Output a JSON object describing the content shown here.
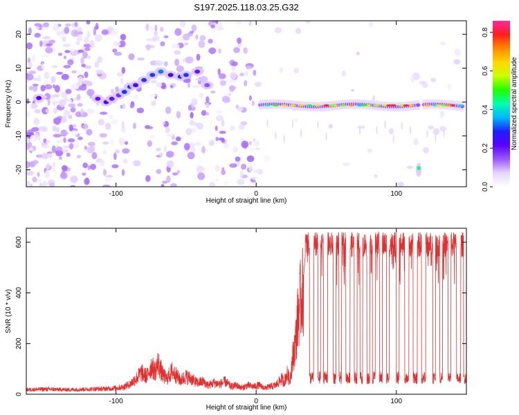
{
  "title": "S197.2025.118.03.25.G32",
  "chart_data": [
    {
      "type": "heatmap",
      "xlabel": "Height of straight line (km)",
      "ylabel": "Frequency (Hz)",
      "xlim": [
        -164,
        150
      ],
      "ylim": [
        -25,
        24
      ],
      "x_ticks": [
        -100,
        0,
        100
      ],
      "y_ticks": [
        -20,
        -10,
        0,
        10,
        20
      ],
      "colorbar": {
        "label": "Normalized spectral amplitude",
        "range": [
          0,
          0.86
        ],
        "ticks": [
          0.0,
          0.2,
          0.4,
          0.6,
          0.8
        ],
        "colors": [
          "#ffffff",
          "#e6d5ff",
          "#9b59ff",
          "#5b00ff",
          "#1f1fff",
          "#00b7ff",
          "#00ffb0",
          "#22ff00",
          "#c8ff00",
          "#ffd800",
          "#ff8a00",
          "#ff1d1d",
          "#ff2aa0"
        ]
      },
      "features": [
        {
          "name": "main carrier band",
          "x": [
            3,
            148
          ],
          "y": -1,
          "peak_amplitude": 0.8
        },
        {
          "name": "drifting branch",
          "x": [
            -105,
            -50
          ],
          "y": [
            -1,
            9
          ]
        },
        {
          "name": "low-frequency segment",
          "x": [
            113,
            118
          ],
          "y": -20
        }
      ]
    },
    {
      "type": "line",
      "xlabel": "Height of straight line (km)",
      "ylabel": "SNR (10 * v/v)",
      "xlim": [
        -164,
        150
      ],
      "ylim": [
        0,
        655
      ],
      "x_ticks": [
        -100,
        0,
        100
      ],
      "y_ticks": [
        0,
        200,
        400,
        600
      ],
      "series": [
        {
          "color": "#e03030",
          "x": [
            -164,
            -150,
            -135,
            -120,
            -105,
            -95,
            -90,
            -85,
            -82,
            -78,
            -75,
            -72,
            -70,
            -67,
            -64,
            -60,
            -57,
            -54,
            -50,
            -46,
            -42,
            -38,
            -34,
            -30,
            -26,
            -22,
            -18,
            -14,
            -10,
            -6,
            -2,
            2,
            6,
            10,
            14,
            18,
            20,
            22,
            24,
            26,
            28,
            30,
            32,
            34
          ],
          "y": [
            18,
            20,
            18,
            20,
            22,
            28,
            40,
            65,
            85,
            70,
            110,
            90,
            125,
            80,
            60,
            90,
            75,
            55,
            70,
            60,
            45,
            50,
            35,
            45,
            40,
            50,
            30,
            35,
            25,
            35,
            30,
            35,
            25,
            30,
            35,
            60,
            50,
            80,
            55,
            140,
            200,
            320,
            380,
            420
          ]
        }
      ],
      "high_state": {
        "x_range": [
          35,
          150
        ],
        "level_range": [
          540,
          640
        ],
        "low_level_range": [
          40,
          90
        ],
        "dropouts": [
          [
            38,
            41
          ],
          [
            44,
            46
          ],
          [
            48,
            51
          ],
          [
            55,
            57
          ],
          [
            59,
            61
          ],
          [
            64,
            67
          ],
          [
            70,
            72
          ],
          [
            74,
            76
          ],
          [
            79,
            81
          ],
          [
            83,
            85
          ],
          [
            88,
            90
          ],
          [
            93,
            95
          ],
          [
            100,
            102
          ],
          [
            106,
            109
          ],
          [
            112,
            115
          ],
          [
            118,
            121
          ],
          [
            126,
            128
          ],
          [
            131,
            133
          ],
          [
            137,
            139
          ],
          [
            143,
            146
          ],
          [
            148,
            150
          ]
        ]
      }
    }
  ]
}
